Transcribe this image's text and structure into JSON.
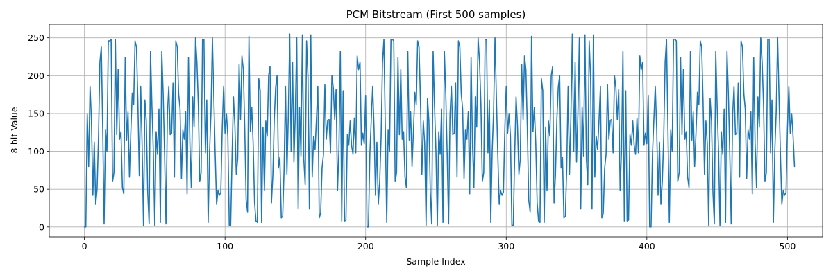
{
  "chart_data": {
    "type": "line",
    "title": "PCM Bitstream (First 500 samples)",
    "xlabel": "Sample Index",
    "ylabel": "8-bit Value",
    "xlim": [
      -25,
      525
    ],
    "ylim": [
      -13,
      268
    ],
    "xticks": [
      0,
      100,
      200,
      300,
      400,
      500
    ],
    "yticks": [
      0,
      50,
      100,
      150,
      200,
      250
    ],
    "grid": true,
    "legend": "none",
    "series": [
      {
        "color": "#1f77b4",
        "x_start": 0,
        "x_step": 1,
        "values": [
          0,
          0,
          150,
          80,
          186,
          140,
          42,
          112,
          30,
          50,
          118,
          218,
          238,
          130,
          4,
          128,
          100,
          246,
          246,
          248,
          60,
          72,
          248,
          122,
          208,
          116,
          126,
          52,
          44,
          224,
          115,
          152,
          66,
          126,
          177,
          162,
          246,
          238,
          166,
          68,
          186,
          110,
          2,
          168,
          140,
          46,
          4,
          232,
          160,
          100,
          2,
          126,
          96,
          156,
          6,
          232,
          176,
          96,
          4,
          148,
          186,
          122,
          124,
          190,
          66,
          246,
          238,
          176,
          156,
          64,
          128,
          116,
          152,
          44,
          224,
          110,
          52,
          172,
          132,
          250,
          218,
          162,
          60,
          72,
          248,
          248,
          98,
          168,
          6,
          100,
          152,
          250,
          172,
          96,
          30,
          48,
          42,
          46,
          130,
          186,
          124,
          150,
          120,
          2,
          2,
          94,
          172,
          134,
          70,
          90,
          215,
          142,
          226,
          208,
          132,
          36,
          20,
          252,
          126,
          158,
          110,
          32,
          8,
          6,
          196,
          180,
          6,
          132,
          48,
          140,
          120,
          200,
          212,
          32,
          68,
          142,
          185,
          200,
          78,
          92,
          12,
          14,
          76,
          186,
          70,
          146,
          255,
          100,
          218,
          86,
          152,
          250,
          24,
          158,
          94,
          254,
          90,
          56,
          246,
          198,
          24,
          254,
          66,
          120,
          102,
          142,
          186,
          12,
          18,
          78,
          96,
          188,
          116,
          141,
          142,
          98,
          200,
          184,
          142,
          182,
          48,
          102,
          232,
          8,
          180,
          8,
          9,
          122,
          108,
          140,
          108,
          96,
          144,
          98,
          226,
          208,
          218,
          108,
          124,
          110,
          174,
          0,
          0,
          96,
          142,
          186,
          130,
          42,
          112,
          30,
          60,
          118,
          218,
          248,
          130,
          6,
          128,
          100,
          248,
          248,
          246,
          60,
          72,
          224,
          122,
          208,
          116,
          126,
          66,
          52,
          232,
          115,
          152,
          80,
          126,
          178,
          162,
          246,
          238,
          166,
          70,
          140,
          110,
          2,
          170,
          140,
          46,
          4,
          232,
          160,
          100,
          2,
          126,
          96,
          156,
          6,
          232,
          176,
          96,
          4,
          148,
          186,
          122,
          124,
          190,
          66,
          246,
          238,
          176,
          156,
          64,
          128,
          116,
          152,
          44,
          224,
          110,
          52,
          172,
          132,
          250,
          218,
          162,
          60,
          72,
          248,
          248,
          98,
          168,
          6,
          100,
          152,
          250,
          172,
          96,
          30,
          48,
          42,
          46,
          130,
          186,
          124,
          150,
          120,
          2,
          2,
          94,
          172,
          134,
          70,
          90,
          215,
          142,
          226,
          208,
          132,
          36,
          20,
          252,
          126,
          158,
          110,
          32,
          8,
          6,
          196,
          180,
          6,
          132,
          48,
          140,
          120,
          200,
          212,
          32,
          68,
          142,
          185,
          200,
          78,
          92,
          12,
          14,
          76,
          186,
          70,
          146,
          255,
          100,
          218,
          86,
          152,
          250,
          24,
          158,
          94,
          254,
          90,
          56,
          246,
          198,
          24,
          254,
          66,
          120,
          102,
          142,
          186,
          12,
          18,
          78,
          96,
          188,
          116,
          141,
          142,
          98,
          200,
          184,
          142,
          182,
          48,
          102,
          232,
          8,
          180,
          8,
          9,
          122,
          108,
          140,
          108,
          96,
          144,
          98,
          226,
          208,
          218,
          108,
          124,
          110,
          174,
          0,
          0,
          96,
          142,
          186,
          130,
          42,
          112,
          30,
          60,
          118,
          218,
          248,
          130,
          6,
          128,
          100,
          248,
          248,
          246,
          60,
          72,
          224,
          122,
          208,
          116,
          126,
          66,
          52,
          232,
          115,
          152,
          80,
          126,
          178,
          162,
          246,
          238,
          166,
          70,
          140,
          110,
          2,
          170,
          140,
          46,
          4,
          232,
          160,
          100,
          2,
          126,
          96,
          156,
          6,
          232,
          176,
          96,
          4,
          148,
          186,
          122,
          124,
          190,
          66,
          246,
          238,
          176,
          156,
          64,
          128,
          116,
          152,
          44,
          224,
          110,
          52,
          172,
          132,
          250,
          218,
          162,
          60,
          72,
          248,
          248,
          98,
          168,
          6,
          100,
          152,
          250,
          172,
          96,
          30,
          48,
          42,
          46,
          130,
          186,
          124,
          150,
          120,
          80
        ]
      }
    ]
  }
}
